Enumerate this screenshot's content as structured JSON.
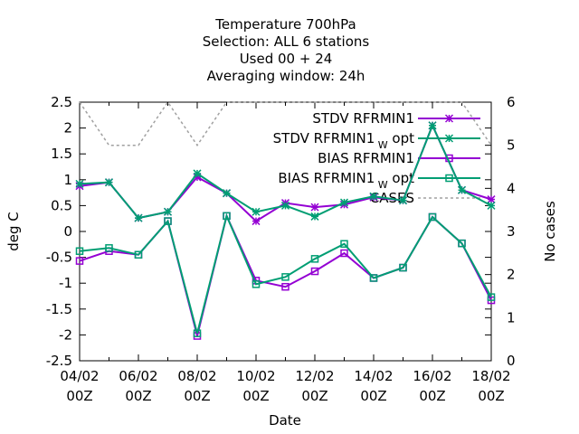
{
  "chart_data": {
    "type": "line",
    "title": [
      "Temperature 700hPa",
      "Selection: ALL      6 stations",
      "Used  00 + 24",
      "Averaging window: 24h"
    ],
    "xlabel": "Date",
    "ylabel": "deg C",
    "y2label": "No cases",
    "x": [
      "04/02 00Z",
      "05/02 00Z",
      "06/02 00Z",
      "07/02 00Z",
      "08/02 00Z",
      "09/02 00Z",
      "10/02 00Z",
      "11/02 00Z",
      "12/02 00Z",
      "13/02 00Z",
      "14/02 00Z",
      "15/02 00Z",
      "16/02 00Z",
      "17/02 00Z",
      "18/02 00Z"
    ],
    "xticks": [
      {
        "line1": "04/02",
        "line2": "00Z"
      },
      {
        "line1": "06/02",
        "line2": "00Z"
      },
      {
        "line1": "08/02",
        "line2": "00Z"
      },
      {
        "line1": "10/02",
        "line2": "00Z"
      },
      {
        "line1": "12/02",
        "line2": "00Z"
      },
      {
        "line1": "14/02",
        "line2": "00Z"
      },
      {
        "line1": "16/02",
        "line2": "00Z"
      },
      {
        "line1": "18/02",
        "line2": "00Z"
      }
    ],
    "ylim": [
      -2.5,
      2.5
    ],
    "yticks": [
      "-2.5",
      "-2",
      "-1.5",
      "-1",
      "-0.5",
      "0",
      "0.5",
      "1",
      "1.5",
      "2",
      "2.5"
    ],
    "y2lim": [
      0,
      6
    ],
    "y2ticks": [
      "0",
      "1",
      "2",
      "3",
      "4",
      "5",
      "6"
    ],
    "legend_position": "top-right",
    "series": [
      {
        "name": "STDV RFRMIN1",
        "name_sub": "",
        "axis": "y1",
        "color": "#9400d3",
        "dash": "solid",
        "marker": "star",
        "values": [
          0.88,
          0.95,
          0.26,
          0.38,
          1.05,
          0.74,
          0.2,
          0.55,
          0.47,
          0.52,
          0.66,
          0.6,
          2.05,
          0.8,
          0.62
        ]
      },
      {
        "name": "STDV RFRMIN1",
        "name_sub": "W",
        "name_suffix": "opt",
        "axis": "y1",
        "color": "#009e73",
        "dash": "solid",
        "marker": "star",
        "values": [
          0.92,
          0.95,
          0.26,
          0.38,
          1.12,
          0.74,
          0.38,
          0.5,
          0.29,
          0.56,
          0.68,
          0.6,
          2.05,
          0.8,
          0.5
        ]
      },
      {
        "name": "BIAS RFRMIN1",
        "name_sub": "",
        "axis": "y1",
        "color": "#9400d3",
        "dash": "solid",
        "marker": "square",
        "values": [
          -0.57,
          -0.38,
          -0.45,
          0.2,
          -2.02,
          0.3,
          -0.95,
          -1.07,
          -0.77,
          -0.42,
          -0.9,
          -0.7,
          0.28,
          -0.23,
          -1.33
        ]
      },
      {
        "name": "BIAS RFRMIN1",
        "name_sub": "W",
        "name_suffix": "opt",
        "axis": "y1",
        "color": "#009e73",
        "dash": "solid",
        "marker": "square",
        "values": [
          -0.38,
          -0.32,
          -0.45,
          0.2,
          -1.97,
          0.3,
          -1.02,
          -0.88,
          -0.53,
          -0.24,
          -0.9,
          -0.7,
          0.28,
          -0.23,
          -1.27
        ]
      },
      {
        "name": "CASES",
        "name_sub": "",
        "axis": "y2",
        "color": "#a0a0a0",
        "dash": "dashed",
        "marker": "none",
        "values": [
          6,
          5,
          5,
          6,
          5,
          6,
          6,
          6,
          6,
          6,
          6,
          6,
          6,
          6,
          5
        ]
      }
    ]
  }
}
